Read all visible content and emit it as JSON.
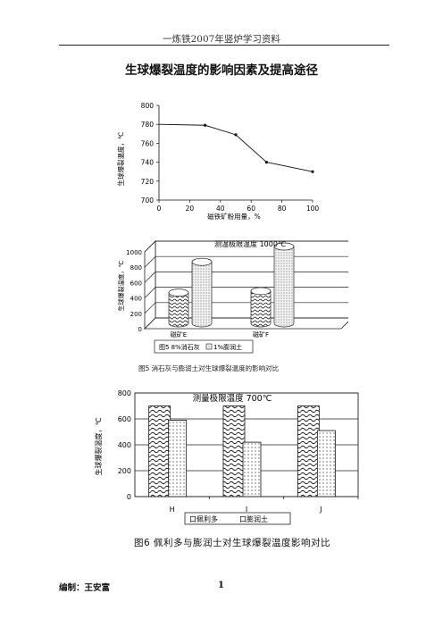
{
  "header": {
    "text": "一炼铁2007年竖炉学习资料"
  },
  "title": "生球爆裂温度的影响因素及提高途径",
  "footer": {
    "editor": "编制：王安富",
    "page": "1"
  },
  "figures": {
    "fig5_caption": "图5   消石灰与膨润土对生球爆裂温度的影响对比",
    "fig6_caption": "图6   佩利多与膨润士对生球爆裂温度影响对比"
  },
  "chart_data": [
    {
      "type": "line",
      "title": "",
      "xlabel": "磁铁矿粉用量，%",
      "ylabel": "生球爆裂温度，℃",
      "x": [
        30,
        50,
        70,
        100
      ],
      "y": [
        779,
        769,
        740,
        730
      ],
      "series0": [
        0,
        780
      ],
      "xlim": [
        0,
        100
      ],
      "ylim": [
        700,
        800
      ],
      "xticks": [
        "0",
        "20",
        "40",
        "60",
        "80",
        "100"
      ],
      "yticks": [
        "700",
        "720",
        "740",
        "760",
        "780",
        "800"
      ],
      "grid": false
    },
    {
      "type": "bar",
      "title": "测温极限温度 1000℃",
      "xlabel": "",
      "ylabel": "生球爆裂温度，℃",
      "categories": [
        "磁矿E",
        "磁矿F"
      ],
      "series": [
        {
          "name": "8%消石灰",
          "values": [
            400,
            420
          ],
          "pattern": "wave"
        },
        {
          "name": "1%膨润土",
          "values": [
            800,
            1000
          ],
          "pattern": "dots"
        }
      ],
      "legend": [
        "图5  8%消石灰",
        "1%膨润土"
      ],
      "ylim": [
        0,
        1000
      ],
      "yticks": [
        "0",
        "200",
        "400",
        "600",
        "800",
        "1000"
      ],
      "grid": true
    },
    {
      "type": "bar",
      "title": "测量极限温度 700℃",
      "xlabel": "",
      "ylabel": "生球爆裂温度，℃",
      "categories": [
        "H",
        "I",
        "J"
      ],
      "series": [
        {
          "name": "佩利多",
          "values": [
            700,
            700,
            700
          ],
          "pattern": "wave"
        },
        {
          "name": "膨润土",
          "values": [
            590,
            420,
            510
          ],
          "pattern": "dots"
        }
      ],
      "legend": [
        "口佩利多",
        "口膨润土"
      ],
      "ylim": [
        0,
        800
      ],
      "yticks": [
        "0",
        "200",
        "400",
        "600",
        "800"
      ],
      "grid": true
    }
  ]
}
